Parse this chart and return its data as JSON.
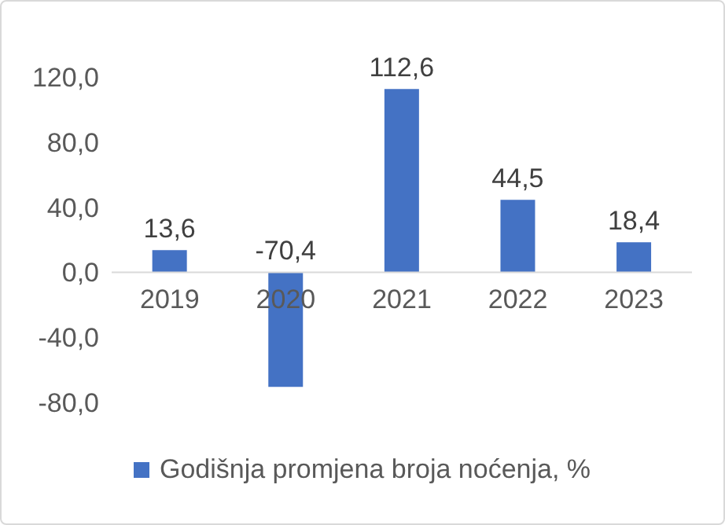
{
  "chart_data": {
    "type": "bar",
    "categories": [
      "2019",
      "2020",
      "2021",
      "2022",
      "2023"
    ],
    "series": [
      {
        "name": "Godišnja promjena broja noćenja, %",
        "color": "#4472c4",
        "values": [
          13.6,
          -70.4,
          112.6,
          44.5,
          18.4
        ],
        "value_labels": [
          "13,6",
          "-70,4",
          "112,6",
          "44,5",
          "18,4"
        ]
      }
    ],
    "ylim": [
      -80,
      120
    ],
    "yticks": [
      {
        "value": -80,
        "label": "-80,0"
      },
      {
        "value": -40,
        "label": "-40,0"
      },
      {
        "value": 0,
        "label": "0,0"
      },
      {
        "value": 40,
        "label": "40,0"
      },
      {
        "value": 80,
        "label": "80,0"
      },
      {
        "value": 120,
        "label": "120,0"
      }
    ],
    "grid": false,
    "legend": "bottom"
  }
}
